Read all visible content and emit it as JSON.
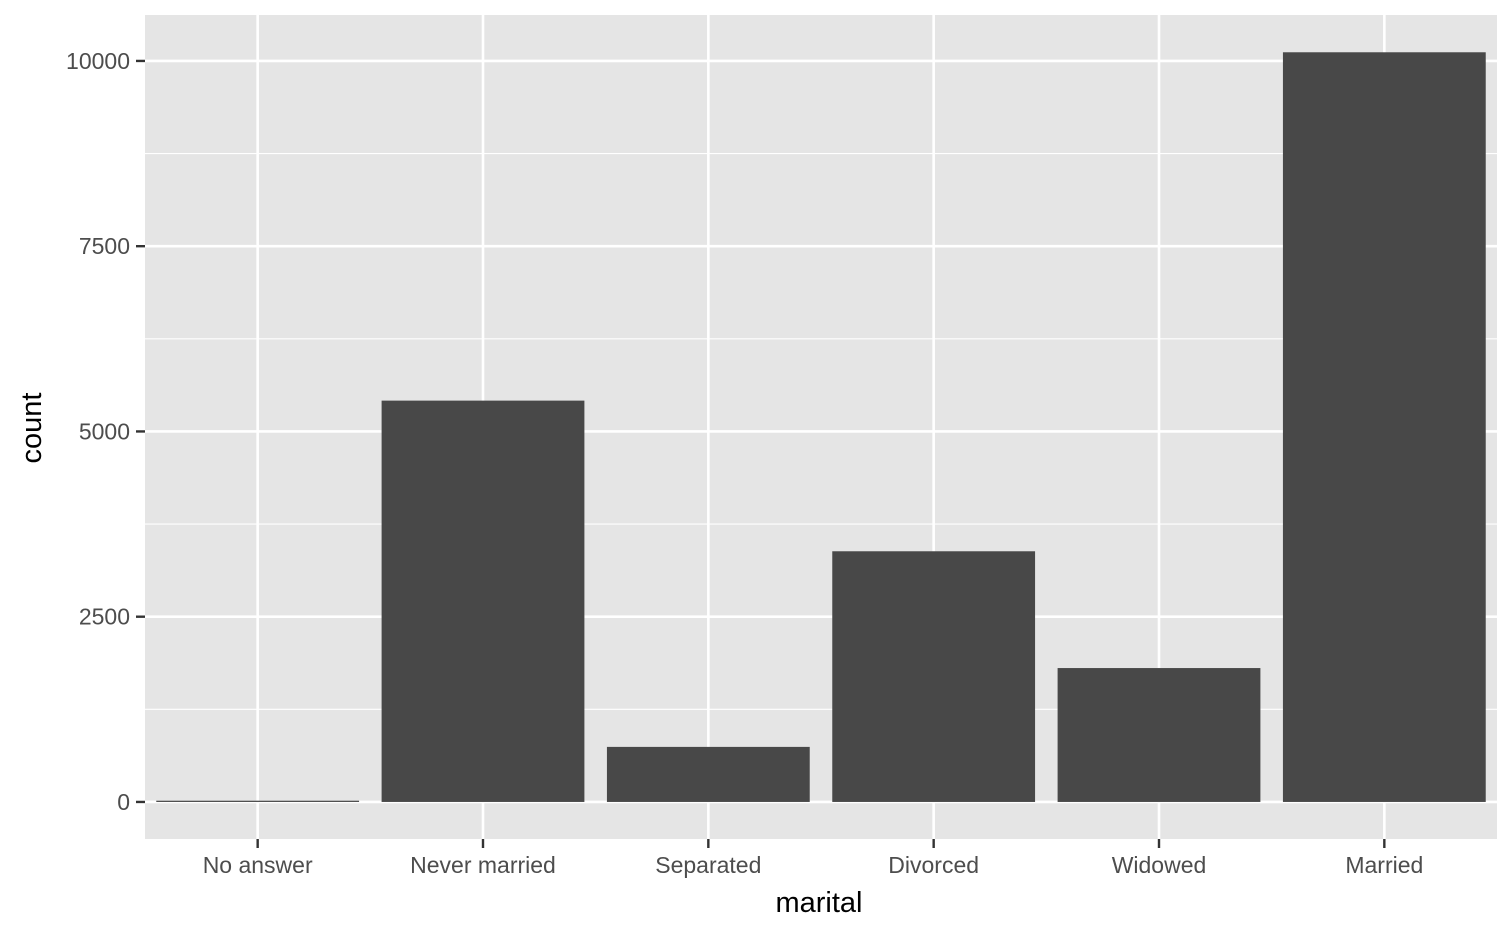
{
  "chart_data": {
    "type": "bar",
    "categories": [
      "No answer",
      "Never married",
      "Separated",
      "Divorced",
      "Widowed",
      "Married"
    ],
    "values": [
      17,
      5416,
      743,
      3383,
      1807,
      10117
    ],
    "xlabel": "marital",
    "ylabel": "count",
    "ylim": [
      -500,
      10620
    ],
    "yticks": [
      0,
      2500,
      5000,
      7500,
      10000
    ],
    "ytick_labels": [
      "0",
      "2500",
      "5000",
      "7500",
      "10000"
    ],
    "grid": true,
    "legend": "none",
    "colors": {
      "panel": "#e5e5e5",
      "grid": "#ffffff",
      "bar": "#484848",
      "tick_text": "#4d4d4d",
      "tick_mark": "#333333",
      "title_text": "#000000"
    }
  }
}
